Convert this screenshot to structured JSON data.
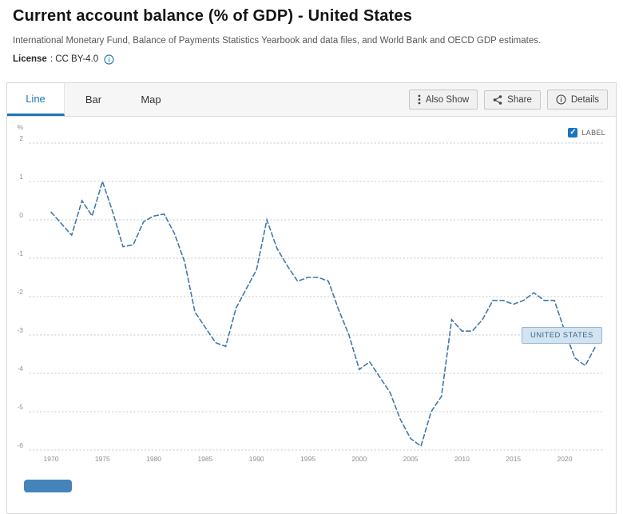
{
  "header": {
    "title": "Current account balance (% of GDP) - United States",
    "source": "International Monetary Fund, Balance of Payments Statistics Yearbook and data files, and World Bank and OECD GDP estimates.",
    "license_label": "License",
    "license_value": ": CC BY-4.0"
  },
  "tabs": [
    {
      "label": "Line",
      "active": true
    },
    {
      "label": "Bar",
      "active": false
    },
    {
      "label": "Map",
      "active": false
    }
  ],
  "toolbar": {
    "also_show": "Also Show",
    "share": "Share",
    "details": "Details"
  },
  "legend": {
    "label": "LABEL",
    "checked": true
  },
  "series_label": "UNITED STATES",
  "colors": {
    "line": "#3e79ab",
    "accent": "#2076b4",
    "grid": "#cbcbcb",
    "axis_text": "#8f8f8f"
  },
  "chart_data": {
    "type": "line",
    "title": "Current account balance (% of GDP) - United States",
    "xlabel": "",
    "ylabel": "%",
    "ylim": [
      -6,
      2
    ],
    "yticks": [
      2,
      1,
      0,
      -1,
      -2,
      -3,
      -4,
      -5,
      -6
    ],
    "xticks": [
      1970,
      1975,
      1980,
      1985,
      1990,
      1995,
      2000,
      2005,
      2010,
      2015,
      2020
    ],
    "grid": "horizontal-dotted",
    "line_style": "dashed",
    "line_color": "#3e79ab",
    "legend_position": "top-right",
    "series_name": "United States",
    "x": [
      1970,
      1971,
      1972,
      1973,
      1974,
      1975,
      1976,
      1977,
      1978,
      1979,
      1980,
      1981,
      1982,
      1983,
      1984,
      1985,
      1986,
      1987,
      1988,
      1989,
      1990,
      1991,
      1992,
      1993,
      1994,
      1995,
      1996,
      1997,
      1998,
      1999,
      2000,
      2001,
      2002,
      2003,
      2004,
      2005,
      2006,
      2007,
      2008,
      2009,
      2010,
      2011,
      2012,
      2013,
      2014,
      2015,
      2016,
      2017,
      2018,
      2019,
      2020,
      2021,
      2022,
      2023
    ],
    "values": [
      0.2,
      -0.1,
      -0.4,
      0.5,
      0.1,
      1.0,
      0.2,
      -0.7,
      -0.65,
      -0.05,
      0.1,
      0.15,
      -0.35,
      -1.1,
      -2.4,
      -2.8,
      -3.2,
      -3.3,
      -2.3,
      -1.8,
      -1.3,
      0.0,
      -0.75,
      -1.2,
      -1.6,
      -1.5,
      -1.5,
      -1.6,
      -2.35,
      -3.0,
      -3.9,
      -3.7,
      -4.1,
      -4.5,
      -5.2,
      -5.7,
      -5.9,
      -5.0,
      -4.6,
      -2.6,
      -2.9,
      -2.9,
      -2.6,
      -2.1,
      -2.1,
      -2.2,
      -2.1,
      -1.9,
      -2.1,
      -2.1,
      -2.9,
      -3.6,
      -3.8,
      -3.3
    ]
  }
}
